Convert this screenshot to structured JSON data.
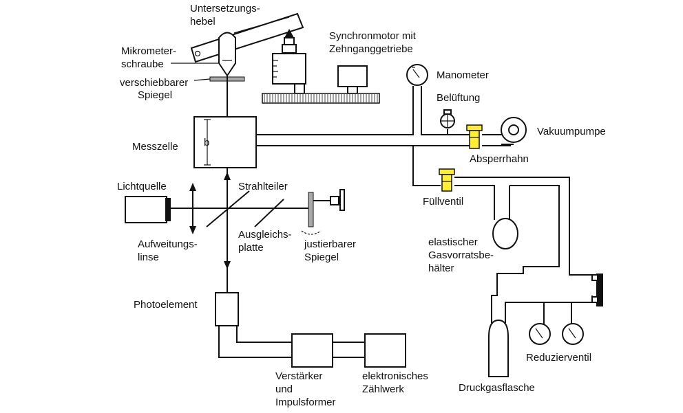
{
  "labels": {
    "untersetzungshebel_1": "Untersetzungs-",
    "untersetzungshebel_2": "hebel",
    "mikrometer_1": "Mikrometer-",
    "mikrometer_2": "schraube",
    "spiegel_1": "verschiebbarer",
    "spiegel_2": "Spiegel",
    "synchron_1": "Synchronmotor mit",
    "synchron_2": "Zehnganggetriebe",
    "manometer": "Manometer",
    "belueftung": "Belüftung",
    "vakuumpumpe": "Vakuumpumpe",
    "absperrhahn": "Absperrhahn",
    "messzelle": "Messzelle",
    "b": "b",
    "lichtquelle": "Lichtquelle",
    "strahlteiler": "Strahlteiler",
    "fuellventil": "Füllventil",
    "ausgleich_1": "Ausgleichs-",
    "ausgleich_2": "platte",
    "justier_1": "justierbarer",
    "justier_2": "Spiegel",
    "aufweitung_1": "Aufweitungs-",
    "aufweitung_2": "linse",
    "gasvorrat_1": "elastischer",
    "gasvorrat_2": "Gasvorratsbe-",
    "gasvorrat_3": "hälter",
    "photoelement": "Photoelement",
    "verstaerker_1": "Verstärker",
    "verstaerker_2": "und",
    "verstaerker_3": "Impulsformer",
    "zaehlwerk_1": "elektronisches",
    "zaehlwerk_2": "Zählwerk",
    "druckgas": "Druckgasflasche",
    "reduzier": "Reduzierventil"
  },
  "colors": {
    "valve": "#ffee33",
    "line": "#111111",
    "mirror": "#aaaaaa"
  }
}
